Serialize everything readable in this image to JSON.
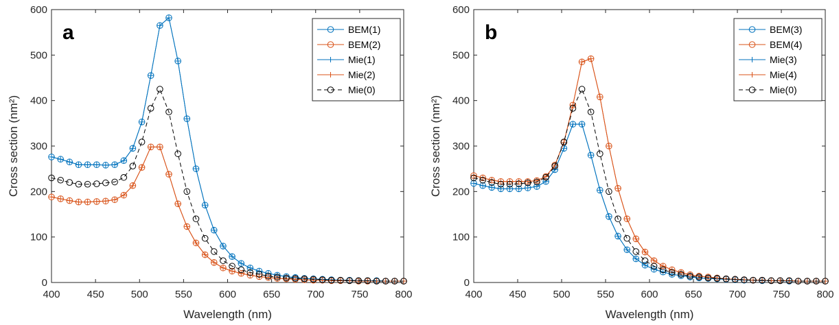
{
  "chart_data": [
    {
      "type": "line",
      "panel_label": "a",
      "x_label": "Wavelength (nm)",
      "y_label": "Cross section (nm²)",
      "xlim": [
        400,
        800
      ],
      "ylim": [
        0,
        600
      ],
      "xticks": [
        400,
        450,
        500,
        550,
        600,
        650,
        700,
        750,
        800
      ],
      "yticks": [
        0,
        100,
        200,
        300,
        400,
        500,
        600
      ],
      "legend": "upper right",
      "x": [
        400,
        410.3,
        420.5,
        430.8,
        441.0,
        451.3,
        461.5,
        471.8,
        482.1,
        492.3,
        502.6,
        512.8,
        523.1,
        533.3,
        543.6,
        553.8,
        564.1,
        574.4,
        584.6,
        594.9,
        605.1,
        615.4,
        625.6,
        635.9,
        646.2,
        656.4,
        666.7,
        676.9,
        687.2,
        697.4,
        707.7,
        717.9,
        728.2,
        738.5,
        748.7,
        759.0,
        769.2,
        779.5,
        789.7,
        800
      ],
      "series": [
        {
          "name": "BEM(1)",
          "color": "#0072BD",
          "marker": "o",
          "dashed": false,
          "values": [
            276,
            271,
            265,
            259,
            259,
            259,
            258,
            259,
            268,
            295,
            353,
            455,
            565,
            582,
            487,
            360,
            250,
            170,
            115,
            80,
            57,
            42,
            32,
            25,
            20,
            16,
            13,
            11,
            9,
            8,
            7,
            6,
            5,
            5,
            4,
            4,
            4,
            3,
            3,
            3
          ]
        },
        {
          "name": "BEM(2)",
          "color": "#D95319",
          "marker": "o",
          "dashed": false,
          "values": [
            188,
            184,
            180,
            177,
            177,
            178,
            179,
            182,
            192,
            213,
            253,
            298,
            298,
            238,
            173,
            123,
            87,
            61,
            44,
            32,
            25,
            20,
            16,
            13,
            11,
            9,
            8,
            7,
            6,
            5,
            5,
            4,
            4,
            4,
            3,
            3,
            3,
            3,
            3,
            3
          ]
        },
        {
          "name": "Mie(1)",
          "color": "#0072BD",
          "marker": "+",
          "dashed": false,
          "values": [
            276,
            271,
            265,
            259,
            259,
            259,
            258,
            259,
            268,
            295,
            353,
            455,
            565,
            582,
            487,
            360,
            250,
            170,
            115,
            80,
            57,
            42,
            32,
            25,
            20,
            16,
            13,
            11,
            9,
            8,
            7,
            6,
            5,
            5,
            4,
            4,
            4,
            3,
            3,
            3
          ]
        },
        {
          "name": "Mie(2)",
          "color": "#D95319",
          "marker": "+",
          "dashed": false,
          "values": [
            188,
            184,
            180,
            177,
            177,
            178,
            179,
            182,
            192,
            213,
            253,
            298,
            298,
            238,
            173,
            123,
            87,
            61,
            44,
            32,
            25,
            20,
            16,
            13,
            11,
            9,
            8,
            7,
            6,
            5,
            5,
            4,
            4,
            4,
            3,
            3,
            3,
            3,
            3,
            3
          ]
        },
        {
          "name": "Mie(0)",
          "color": "#000000",
          "marker": "o",
          "dashed": true,
          "values": [
            230,
            225,
            220,
            216,
            216,
            217,
            219,
            221,
            231,
            256,
            309,
            383,
            425,
            375,
            283,
            200,
            140,
            97,
            68,
            48,
            36,
            28,
            22,
            18,
            14,
            12,
            10,
            9,
            8,
            7,
            6,
            5,
            5,
            4,
            4,
            4,
            3,
            3,
            3,
            3
          ]
        }
      ]
    },
    {
      "type": "line",
      "panel_label": "b",
      "x_label": "Wavelength (nm)",
      "y_label": "Cross section (nm²)",
      "xlim": [
        400,
        800
      ],
      "ylim": [
        0,
        600
      ],
      "xticks": [
        400,
        450,
        500,
        550,
        600,
        650,
        700,
        750,
        800
      ],
      "yticks": [
        0,
        100,
        200,
        300,
        400,
        500,
        600
      ],
      "legend": "upper right",
      "x": [
        400,
        410.3,
        420.5,
        430.8,
        441.0,
        451.3,
        461.5,
        471.8,
        482.1,
        492.3,
        502.6,
        512.8,
        523.1,
        533.3,
        543.6,
        553.8,
        564.1,
        574.4,
        584.6,
        594.9,
        605.1,
        615.4,
        625.6,
        635.9,
        646.2,
        656.4,
        666.7,
        676.9,
        687.2,
        697.4,
        707.7,
        717.9,
        728.2,
        738.5,
        748.7,
        759.0,
        769.2,
        779.5,
        789.7,
        800
      ],
      "series": [
        {
          "name": "BEM(3)",
          "color": "#0072BD",
          "marker": "o",
          "dashed": false,
          "values": [
            218,
            213,
            209,
            206,
            206,
            206,
            208,
            211,
            222,
            248,
            295,
            348,
            348,
            280,
            203,
            145,
            102,
            72,
            52,
            38,
            29,
            23,
            18,
            15,
            12,
            10,
            9,
            8,
            7,
            6,
            5,
            5,
            4,
            4,
            4,
            3,
            3,
            3,
            3,
            3
          ]
        },
        {
          "name": "BEM(4)",
          "color": "#D95319",
          "marker": "o",
          "dashed": false,
          "values": [
            235,
            230,
            225,
            222,
            222,
            222,
            222,
            224,
            233,
            258,
            308,
            390,
            485,
            492,
            408,
            300,
            207,
            140,
            96,
            67,
            48,
            36,
            28,
            22,
            17,
            14,
            12,
            10,
            8,
            7,
            6,
            5,
            5,
            4,
            4,
            4,
            3,
            3,
            3,
            3
          ]
        },
        {
          "name": "Mie(3)",
          "color": "#0072BD",
          "marker": "+",
          "dashed": false,
          "values": [
            218,
            213,
            209,
            206,
            206,
            206,
            208,
            211,
            222,
            248,
            295,
            348,
            348,
            280,
            203,
            145,
            102,
            72,
            52,
            38,
            29,
            23,
            18,
            15,
            12,
            10,
            9,
            8,
            7,
            6,
            5,
            5,
            4,
            4,
            4,
            3,
            3,
            3,
            3,
            3
          ]
        },
        {
          "name": "Mie(4)",
          "color": "#D95319",
          "marker": "+",
          "dashed": false,
          "values": [
            235,
            230,
            225,
            222,
            222,
            222,
            222,
            224,
            233,
            258,
            308,
            390,
            485,
            492,
            408,
            300,
            207,
            140,
            96,
            67,
            48,
            36,
            28,
            22,
            17,
            14,
            12,
            10,
            8,
            7,
            6,
            5,
            5,
            4,
            4,
            4,
            3,
            3,
            3,
            3
          ]
        },
        {
          "name": "Mie(0)",
          "color": "#000000",
          "marker": "o",
          "dashed": true,
          "values": [
            230,
            225,
            220,
            216,
            216,
            217,
            219,
            221,
            231,
            256,
            309,
            383,
            425,
            375,
            283,
            200,
            140,
            97,
            68,
            48,
            36,
            28,
            22,
            18,
            14,
            12,
            10,
            9,
            8,
            7,
            6,
            5,
            5,
            4,
            4,
            4,
            3,
            3,
            3,
            3
          ]
        }
      ]
    }
  ]
}
